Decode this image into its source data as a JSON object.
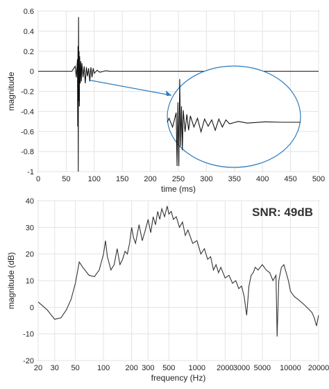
{
  "chart_data": [
    {
      "type": "line",
      "xlabel": "time (ms)",
      "ylabel": "magnitude",
      "xlim": [
        0,
        500
      ],
      "ylim": [
        -1,
        0.6
      ],
      "xticks": [
        0,
        50,
        100,
        150,
        200,
        250,
        300,
        350,
        400,
        450,
        500
      ],
      "yticks": [
        -1,
        -0.8,
        -0.6,
        -0.4,
        -0.2,
        0,
        0.2,
        0.4,
        0.6
      ],
      "xticklabels": [
        "0",
        "50",
        "100",
        "150",
        "200",
        "250",
        "300",
        "350",
        "400",
        "450",
        "500"
      ],
      "yticklabels": [
        "-1",
        "-0.8",
        "-0.6",
        "-0.4",
        "-0.2",
        "0",
        "0.2",
        "0.4",
        "0.6"
      ],
      "grid": true,
      "line_color": "#111111",
      "inset": {
        "shape": "ellipse",
        "description_color": "#2a7bbf",
        "x_range_ms": [
          65,
          140
        ]
      },
      "series": [
        {
          "x": [
            0,
            60,
            66,
            68,
            70,
            70.5,
            71,
            71.5,
            72,
            72.5,
            73,
            73.5,
            74,
            75,
            76,
            77,
            78,
            80,
            82,
            84,
            86,
            88,
            90,
            92,
            94,
            96,
            98,
            100,
            105,
            110,
            120,
            130,
            150,
            200,
            250,
            300,
            350,
            400,
            450,
            500
          ],
          "y": [
            0,
            0,
            0.05,
            -0.06,
            0.12,
            -0.55,
            0.25,
            -1.0,
            0.54,
            -0.3,
            0.2,
            -0.35,
            0.15,
            -0.12,
            0.1,
            -0.1,
            0.08,
            -0.06,
            0.05,
            -0.12,
            0.04,
            -0.05,
            0.03,
            -0.1,
            0.04,
            -0.06,
            0.03,
            -0.02,
            0.01,
            -0.01,
            0.005,
            0,
            0,
            0,
            0,
            0,
            0,
            0,
            0,
            0
          ]
        }
      ]
    },
    {
      "type": "line",
      "xlabel": "frequency (Hz)",
      "ylabel": "magnitude (dB)",
      "xscale": "log",
      "xlim": [
        20,
        20000
      ],
      "ylim": [
        -20,
        40
      ],
      "xticks": [
        20,
        30,
        50,
        100,
        200,
        300,
        500,
        1000,
        2000,
        3000,
        5000,
        10000,
        20000
      ],
      "xticklabels": [
        "20",
        "30",
        "50",
        "100",
        "200",
        "300",
        "500",
        "1000",
        "2000",
        "3000",
        "5000",
        "10000",
        "20000"
      ],
      "yticks": [
        -20,
        -10,
        0,
        10,
        20,
        30,
        40
      ],
      "yticklabels": [
        "-20",
        "-10",
        "0",
        "10",
        "20",
        "30",
        "40"
      ],
      "grid": true,
      "annotation": "SNR: 49dB",
      "line_color": "#333333",
      "series": [
        {
          "x": [
            20,
            25,
            30,
            35,
            40,
            45,
            50,
            55,
            60,
            70,
            80,
            90,
            100,
            105,
            110,
            120,
            130,
            140,
            150,
            160,
            170,
            180,
            190,
            200,
            210,
            220,
            240,
            260,
            280,
            300,
            320,
            340,
            360,
            380,
            400,
            420,
            450,
            480,
            500,
            530,
            560,
            600,
            650,
            700,
            750,
            800,
            900,
            1000,
            1100,
            1200,
            1300,
            1400,
            1500,
            1600,
            1700,
            1800,
            2000,
            2200,
            2400,
            2600,
            2800,
            3000,
            3200,
            3400,
            3600,
            3800,
            4000,
            4200,
            4500,
            5000,
            5500,
            6000,
            6500,
            7000,
            7200,
            7500,
            8000,
            8500,
            9000,
            9500,
            10000,
            11000,
            12000,
            13000,
            14000,
            15000,
            16000,
            17000,
            18000,
            19000,
            20000
          ],
          "y": [
            2,
            -1,
            -4.5,
            -4,
            -1,
            3,
            9,
            17,
            15,
            12,
            11.5,
            14,
            20,
            25,
            19,
            14,
            16,
            22,
            16,
            18,
            21,
            20,
            24,
            30,
            26,
            24,
            31,
            25,
            29,
            33,
            28,
            34,
            31,
            36,
            33,
            37,
            34,
            38,
            35,
            36,
            33,
            34,
            30,
            32,
            27,
            29,
            24,
            25,
            20,
            22,
            18,
            19,
            14,
            16,
            13,
            15,
            11,
            12,
            9,
            10,
            7,
            8,
            4,
            -3,
            8,
            12,
            13,
            15,
            14,
            16,
            14,
            13,
            10,
            12,
            -11,
            10,
            15,
            16,
            13,
            10,
            6,
            4,
            3,
            2,
            1,
            0,
            -1,
            -2,
            -4,
            -7,
            -3
          ]
        }
      ]
    }
  ]
}
